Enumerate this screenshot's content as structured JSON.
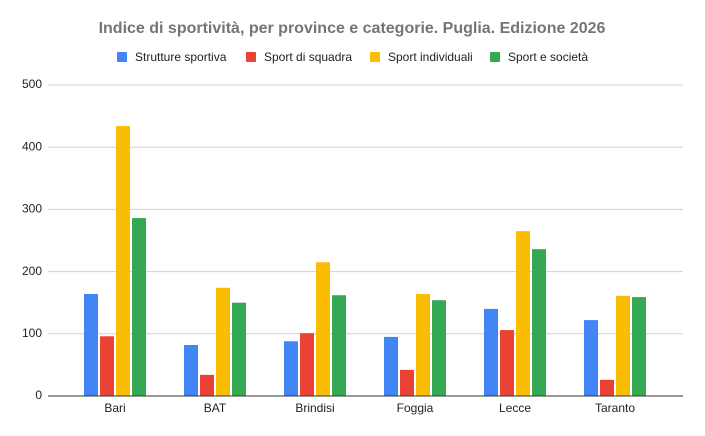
{
  "chart_data": {
    "type": "bar",
    "title": "Indice di sportività, per province e categorie. Puglia. Edizione 2026",
    "categories": [
      "Bari",
      "BAT",
      "Brindisi",
      "Foggia",
      "Lecce",
      "Taranto"
    ],
    "series": [
      {
        "name": "Strutture sportiva",
        "color": "#4285f4",
        "values": [
          164,
          82,
          88,
          95,
          140,
          122
        ]
      },
      {
        "name": "Sport di squadra",
        "color": "#ea4335",
        "values": [
          96,
          34,
          101,
          42,
          106,
          26
        ]
      },
      {
        "name": "Sport individuali",
        "color": "#fbbc04",
        "values": [
          434,
          174,
          215,
          164,
          265,
          161
        ]
      },
      {
        "name": "Sport e società",
        "color": "#34a853",
        "values": [
          286,
          150,
          162,
          154,
          236,
          159
        ]
      }
    ],
    "ylim": [
      0,
      500
    ],
    "yticks": [
      0,
      100,
      200,
      300,
      400,
      500
    ],
    "grid": true,
    "legend": "top"
  }
}
